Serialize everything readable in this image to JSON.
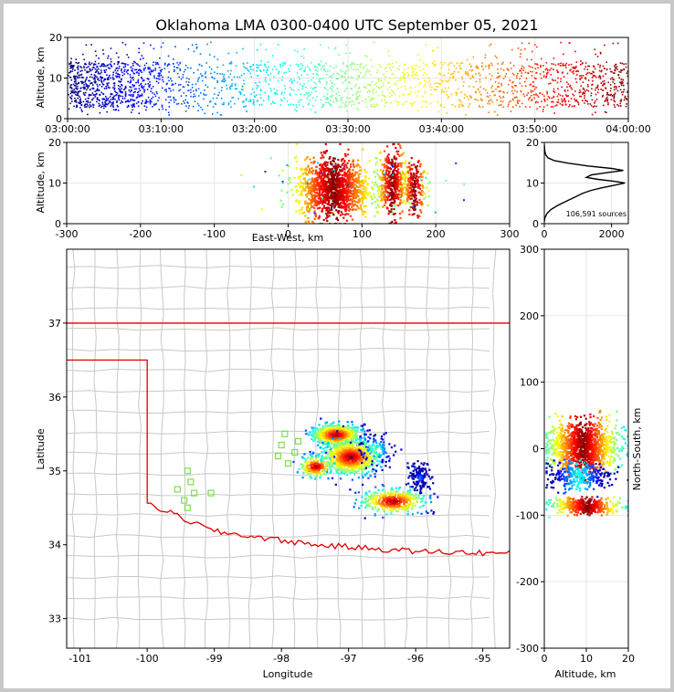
{
  "title": "Oklahoma LMA 0300-0400 UTC September 05, 2021",
  "colors": {
    "state_border": "#e00000",
    "county_lines": "#c8c8c8",
    "stations": "#7be04a",
    "histogram": "#000000"
  },
  "colormap": "jet",
  "chart_data": [
    {
      "type": "scatter",
      "panel": "altitude-time",
      "ylabel": "Altitude, km",
      "x_ticks": [
        "03:00:00",
        "03:10:00",
        "03:20:00",
        "03:30:00",
        "03:40:00",
        "03:50:00",
        "04:00:00"
      ],
      "y_ticks": [
        0,
        10,
        20
      ],
      "xlim": [
        "03:00:00",
        "04:00:00"
      ],
      "ylim": [
        0,
        20
      ],
      "density_by_minute": [
        1.0,
        0.98,
        0.96,
        0.94,
        0.9,
        0.85,
        0.8,
        0.72,
        0.6,
        0.5,
        0.42,
        0.38,
        0.35,
        0.33,
        0.3,
        0.3,
        0.28,
        0.3,
        0.3,
        0.32,
        0.32,
        0.3,
        0.3,
        0.3,
        0.32,
        0.34,
        0.36,
        0.38,
        0.4,
        0.4,
        0.38,
        0.36,
        0.36,
        0.34,
        0.34,
        0.32,
        0.3,
        0.3,
        0.3,
        0.3,
        0.3,
        0.3,
        0.32,
        0.32,
        0.34,
        0.36,
        0.36,
        0.38,
        0.4,
        0.42,
        0.42,
        0.44,
        0.45,
        0.45,
        0.46,
        0.48,
        0.5,
        0.52,
        0.55,
        0.58
      ],
      "altitude_range_km": [
        1,
        19
      ],
      "core_altitude_km": [
        3,
        14
      ]
    },
    {
      "type": "scatter",
      "panel": "altitude-east-west",
      "xlabel": "East-West, km",
      "ylabel": "Altitude, km",
      "x_ticks": [
        -300,
        -200,
        -100,
        0,
        100,
        200,
        300
      ],
      "y_ticks": [
        0,
        10,
        20
      ],
      "xlim": [
        -300,
        300
      ],
      "ylim": [
        0,
        20
      ],
      "clusters": [
        {
          "x": 60,
          "sx": 25,
          "alt": 9,
          "salt": 3.5,
          "n": 1300
        },
        {
          "x": 140,
          "sx": 10,
          "alt": 10,
          "salt": 4,
          "n": 420
        },
        {
          "x": 170,
          "sx": 8,
          "alt": 9,
          "salt": 3,
          "n": 200
        }
      ]
    },
    {
      "type": "line",
      "panel": "altitude-histogram",
      "annotation": "106,591 sources",
      "x_ticks": [
        0,
        2000
      ],
      "y_ticks": [
        0,
        10,
        20
      ],
      "xlim": [
        0,
        2500
      ],
      "ylim": [
        0,
        20
      ],
      "profile": [
        [
          0,
          0.5
        ],
        [
          20,
          1.5
        ],
        [
          80,
          2.5
        ],
        [
          200,
          3.5
        ],
        [
          400,
          4.5
        ],
        [
          650,
          5.5
        ],
        [
          900,
          6.5
        ],
        [
          1150,
          7.5
        ],
        [
          1400,
          8.2
        ],
        [
          1700,
          8.8
        ],
        [
          2050,
          9.4
        ],
        [
          2400,
          10.0
        ],
        [
          2100,
          10.4
        ],
        [
          1600,
          10.9
        ],
        [
          1250,
          11.4
        ],
        [
          1400,
          12.0
        ],
        [
          1900,
          12.6
        ],
        [
          2350,
          13.1
        ],
        [
          2000,
          13.6
        ],
        [
          1300,
          14.2
        ],
        [
          700,
          14.9
        ],
        [
          300,
          15.5
        ],
        [
          110,
          16.2
        ],
        [
          40,
          17.0
        ],
        [
          10,
          18.0
        ],
        [
          0,
          19.5
        ]
      ]
    },
    {
      "type": "scatter",
      "panel": "plan-view",
      "xlabel": "Longitude",
      "ylabel": "Latitude",
      "x_ticks": [
        -101,
        -100,
        -99,
        -98,
        -97,
        -96,
        -95
      ],
      "y_ticks": [
        33,
        34,
        35,
        36,
        37
      ],
      "xlim": [
        -101.2,
        -94.6
      ],
      "ylim": [
        32.6,
        38.0
      ],
      "stations": [
        [
          -99.4,
          35.0
        ],
        [
          -99.35,
          34.85
        ],
        [
          -99.55,
          34.75
        ],
        [
          -99.3,
          34.7
        ],
        [
          -99.45,
          34.6
        ],
        [
          -99.4,
          34.5
        ],
        [
          -99.05,
          34.7
        ],
        [
          -97.95,
          35.5
        ],
        [
          -98.0,
          35.35
        ],
        [
          -98.05,
          35.2
        ],
        [
          -97.9,
          35.1
        ],
        [
          -97.8,
          35.25
        ],
        [
          -97.75,
          35.4
        ]
      ],
      "clusters": [
        {
          "lon": -97.2,
          "lat": 35.5,
          "slon": 0.17,
          "slat": 0.07,
          "n": 650
        },
        {
          "lon": -96.98,
          "lat": 35.2,
          "slon": 0.2,
          "slat": 0.11,
          "n": 800
        },
        {
          "lon": -97.5,
          "lat": 35.07,
          "slon": 0.12,
          "slat": 0.07,
          "n": 200
        },
        {
          "lon": -96.35,
          "lat": 34.6,
          "slon": 0.22,
          "slat": 0.08,
          "n": 400
        },
        {
          "lon": -95.95,
          "lat": 34.92,
          "slon": 0.08,
          "slat": 0.1,
          "n": 140
        },
        {
          "lon": -96.6,
          "lat": 35.3,
          "slon": 0.15,
          "slat": 0.12,
          "n": 90
        }
      ]
    },
    {
      "type": "scatter",
      "panel": "north-south-altitude",
      "xlabel": "Altitude, km",
      "ylabel": "North-South, km",
      "x_ticks": [
        0,
        10,
        20
      ],
      "y_ticks": [
        -300,
        -200,
        -100,
        0,
        100,
        200,
        300
      ],
      "xlim": [
        0,
        20
      ],
      "ylim": [
        -300,
        300
      ],
      "clusters": [
        {
          "ns": 5,
          "sns": 18,
          "alt": 9,
          "salt": 4,
          "n": 1200
        },
        {
          "ns": -40,
          "sns": 10,
          "alt": 8,
          "salt": 4,
          "n": 300
        },
        {
          "ns": -85,
          "sns": 6,
          "alt": 10,
          "salt": 4,
          "n": 400
        }
      ]
    }
  ]
}
